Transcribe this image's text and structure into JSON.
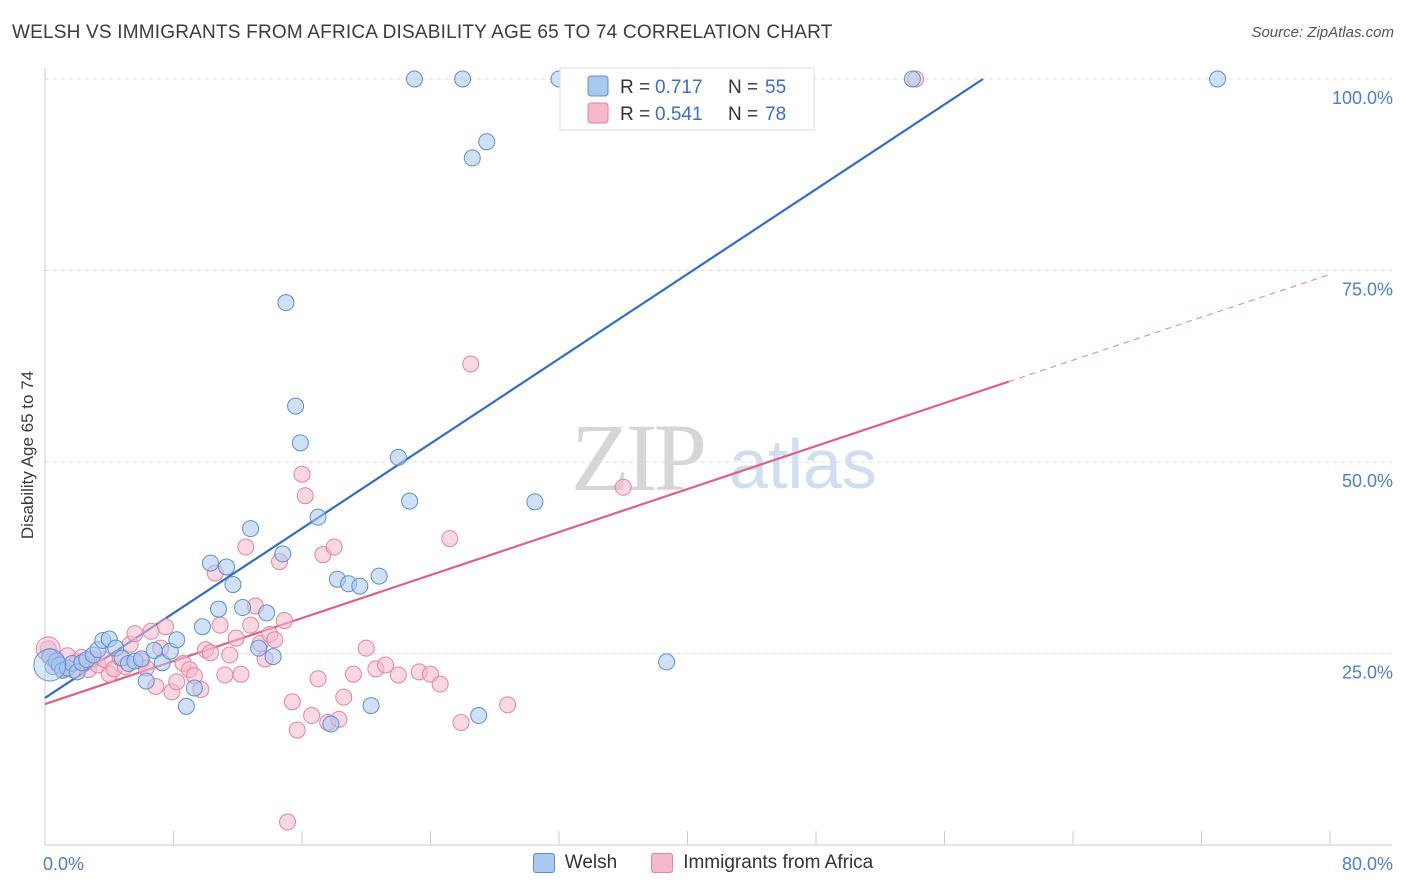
{
  "title": "WELSH VS IMMIGRANTS FROM AFRICA DISABILITY AGE 65 TO 74 CORRELATION CHART",
  "source": "Source: ZipAtlas.com",
  "watermark": {
    "zip": "ZIP",
    "atlas": "atlas"
  },
  "colors": {
    "welsh_fill": "#a9c8f0",
    "welsh_stroke": "#5b8fd6",
    "welsh_line": "#2f6ecb",
    "africa_fill": "#f5b8cb",
    "africa_stroke": "#e8829f",
    "africa_line": "#e0608a",
    "grid": "#dcdcdc",
    "axis_text": "#4a7fd4"
  },
  "legend": {
    "rows": [
      {
        "r_label": "R =",
        "r_value": "0.717",
        "n_label": "N =",
        "n_value": "55"
      },
      {
        "r_label": "R =",
        "r_value": "0.541",
        "n_label": "N =",
        "n_value": "78"
      }
    ]
  },
  "bottom_legend": {
    "welsh": "Welsh",
    "africa": "Immigrants from Africa"
  },
  "chart_data": {
    "type": "scatter",
    "title": "WELSH VS IMMIGRANTS FROM AFRICA DISABILITY AGE 65 TO 74 CORRELATION CHART",
    "xlabel": "",
    "ylabel": "Disability Age 65 to 74",
    "xlim": [
      0,
      80
    ],
    "ylim": [
      0,
      100
    ],
    "x_tick_labels": [
      "0.0%",
      "80.0%"
    ],
    "y_tick_labels": [
      "25.0%",
      "50.0%",
      "75.0%",
      "100.0%"
    ],
    "y_ticks": [
      25,
      50,
      75,
      100
    ],
    "series": [
      {
        "name": "Welsh",
        "R": 0.717,
        "N": 55,
        "trend": {
          "x": [
            0,
            58.4
          ],
          "y": [
            19.2,
            100
          ]
        },
        "points": [
          [
            0.3,
            24.6
          ],
          [
            0.5,
            23.3
          ],
          [
            0.7,
            24.0
          ],
          [
            0.9,
            23.5
          ],
          [
            1.1,
            22.8
          ],
          [
            1.4,
            23.1
          ],
          [
            1.7,
            23.7
          ],
          [
            2.0,
            22.6
          ],
          [
            2.3,
            23.8
          ],
          [
            2.6,
            24.2
          ],
          [
            3.0,
            24.8
          ],
          [
            3.3,
            25.5
          ],
          [
            3.6,
            26.7
          ],
          [
            4.0,
            26.9
          ],
          [
            4.4,
            25.7
          ],
          [
            4.8,
            24.4
          ],
          [
            5.2,
            23.7
          ],
          [
            5.6,
            24.0
          ],
          [
            6.0,
            24.3
          ],
          [
            6.3,
            21.4
          ],
          [
            6.8,
            25.4
          ],
          [
            7.3,
            23.8
          ],
          [
            7.8,
            25.3
          ],
          [
            8.2,
            26.8
          ],
          [
            8.8,
            18.1
          ],
          [
            9.3,
            20.5
          ],
          [
            9.8,
            28.5
          ],
          [
            10.3,
            36.8
          ],
          [
            10.8,
            30.8
          ],
          [
            11.3,
            36.3
          ],
          [
            11.7,
            34.0
          ],
          [
            12.3,
            31.0
          ],
          [
            12.8,
            41.3
          ],
          [
            13.3,
            25.7
          ],
          [
            13.8,
            30.3
          ],
          [
            14.2,
            24.6
          ],
          [
            14.8,
            38.0
          ],
          [
            15.0,
            70.8
          ],
          [
            15.6,
            57.3
          ],
          [
            15.9,
            52.5
          ],
          [
            17.0,
            42.8
          ],
          [
            17.8,
            15.8
          ],
          [
            18.2,
            34.7
          ],
          [
            18.9,
            34.1
          ],
          [
            19.6,
            33.8
          ],
          [
            20.3,
            18.2
          ],
          [
            20.8,
            35.1
          ],
          [
            22.0,
            50.6
          ],
          [
            22.7,
            44.9
          ],
          [
            23.0,
            100
          ],
          [
            26.0,
            100
          ],
          [
            26.6,
            89.7
          ],
          [
            27.0,
            16.9
          ],
          [
            27.5,
            91.8
          ],
          [
            30.5,
            44.8
          ],
          [
            32.0,
            100
          ],
          [
            38.7,
            23.9
          ],
          [
            54.0,
            100
          ],
          [
            73.0,
            100
          ]
        ]
      },
      {
        "name": "Immigrants from Africa",
        "R": 0.541,
        "N": 78,
        "trend": {
          "x": [
            0,
            60
          ],
          "y": [
            18.4,
            60.5
          ]
        },
        "trend_dashed": {
          "x": [
            60,
            80
          ],
          "y": [
            60.5,
            74.5
          ]
        },
        "points": [
          [
            0.2,
            25.6
          ],
          [
            0.5,
            24.3
          ],
          [
            0.8,
            23.6
          ],
          [
            1.1,
            23.0
          ],
          [
            1.4,
            24.7
          ],
          [
            1.7,
            22.9
          ],
          [
            2.0,
            23.9
          ],
          [
            2.3,
            24.5
          ],
          [
            2.7,
            22.9
          ],
          [
            3.0,
            24.3
          ],
          [
            3.3,
            23.5
          ],
          [
            3.7,
            24.2
          ],
          [
            4.0,
            22.3
          ],
          [
            4.3,
            23.0
          ],
          [
            4.7,
            24.4
          ],
          [
            5.0,
            23.3
          ],
          [
            5.3,
            26.2
          ],
          [
            5.6,
            27.6
          ],
          [
            6.0,
            24.0
          ],
          [
            6.3,
            23.1
          ],
          [
            6.6,
            27.9
          ],
          [
            6.9,
            20.7
          ],
          [
            7.2,
            25.7
          ],
          [
            7.5,
            28.5
          ],
          [
            7.9,
            20.0
          ],
          [
            8.2,
            21.3
          ],
          [
            8.6,
            23.7
          ],
          [
            9.0,
            22.9
          ],
          [
            9.3,
            22.1
          ],
          [
            9.7,
            20.3
          ],
          [
            10.0,
            25.5
          ],
          [
            10.3,
            25.1
          ],
          [
            10.6,
            35.5
          ],
          [
            10.9,
            28.7
          ],
          [
            11.2,
            22.2
          ],
          [
            11.5,
            24.8
          ],
          [
            11.9,
            27.0
          ],
          [
            12.2,
            22.3
          ],
          [
            12.5,
            38.9
          ],
          [
            12.8,
            28.7
          ],
          [
            13.1,
            31.2
          ],
          [
            13.4,
            26.3
          ],
          [
            13.7,
            24.3
          ],
          [
            14.0,
            27.5
          ],
          [
            14.3,
            26.8
          ],
          [
            14.6,
            37.0
          ],
          [
            14.9,
            29.3
          ],
          [
            15.1,
            3.0
          ],
          [
            15.4,
            18.7
          ],
          [
            15.7,
            15.0
          ],
          [
            16.0,
            48.4
          ],
          [
            16.2,
            45.6
          ],
          [
            16.6,
            16.9
          ],
          [
            17.0,
            21.7
          ],
          [
            17.3,
            37.9
          ],
          [
            17.6,
            16.0
          ],
          [
            18.0,
            38.9
          ],
          [
            18.3,
            16.4
          ],
          [
            18.6,
            19.3
          ],
          [
            19.2,
            22.3
          ],
          [
            20.0,
            25.7
          ],
          [
            20.6,
            23.0
          ],
          [
            21.2,
            23.5
          ],
          [
            22.0,
            22.2
          ],
          [
            23.3,
            22.6
          ],
          [
            24.0,
            22.3
          ],
          [
            24.6,
            21.0
          ],
          [
            25.2,
            40.0
          ],
          [
            25.9,
            16.0
          ],
          [
            26.5,
            62.8
          ],
          [
            28.8,
            18.3
          ],
          [
            36.0,
            46.7
          ],
          [
            54.2,
            100
          ]
        ]
      }
    ]
  }
}
